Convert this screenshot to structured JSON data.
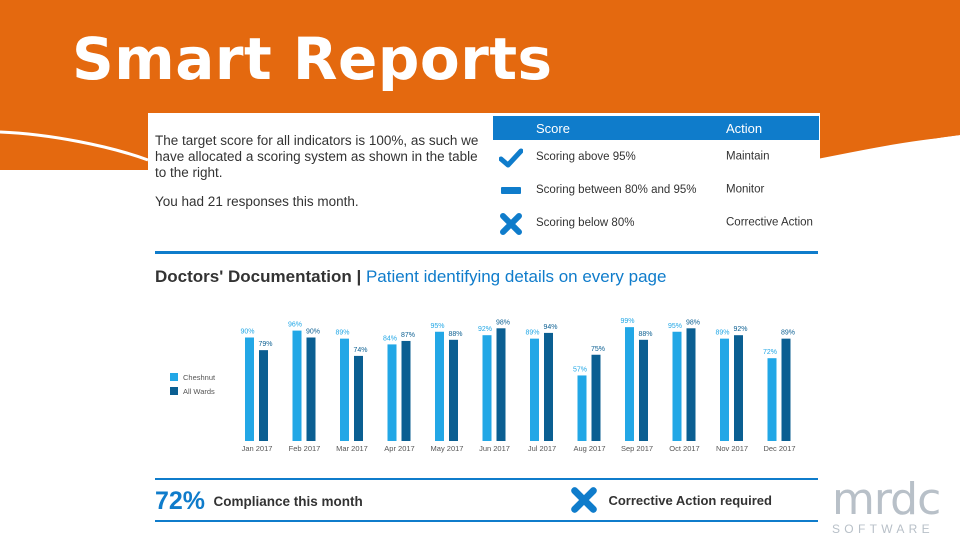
{
  "slide": {
    "title": "Smart Reports"
  },
  "intro": {
    "text": "The target score for all indicators is 100%, as such we have allocated a scoring system as shown in the table to the right.",
    "responses": "You had 21 responses this month."
  },
  "score_table": {
    "headers": {
      "score": "Score",
      "action": "Action"
    },
    "rows": [
      {
        "icon": "check-icon",
        "score": "Scoring above 95%",
        "action": "Maintain"
      },
      {
        "icon": "dash-icon",
        "score": "Scoring between 80% and 95%",
        "action": "Monitor"
      },
      {
        "icon": "cross-icon",
        "score": "Scoring below 80%",
        "action": "Corrective Action"
      }
    ]
  },
  "section": {
    "title_bold": "Doctors' Documentation",
    "separator": " | ",
    "title_highlight": "Patient identifying details on every page"
  },
  "chart_data": {
    "type": "bar",
    "categories": [
      "Jan 2017",
      "Feb 2017",
      "Mar 2017",
      "Apr 2017",
      "May 2017",
      "Jun 2017",
      "Jul 2017",
      "Aug 2017",
      "Sep 2017",
      "Oct 2017",
      "Nov 2017",
      "Dec 2017"
    ],
    "series": [
      {
        "name": "Cheshnut",
        "values": [
          90,
          96,
          89,
          84,
          95,
          92,
          89,
          57,
          99,
          95,
          89,
          72
        ],
        "labels": [
          "90%",
          "96%",
          "89%",
          "84%",
          "95%",
          "92%",
          "89%",
          "57%",
          "99%",
          "95%",
          "89%",
          "72%"
        ]
      },
      {
        "name": "All Wards",
        "values": [
          79,
          90,
          74,
          87,
          88,
          98,
          94,
          75,
          88,
          98,
          92,
          89
        ],
        "labels": [
          "79%",
          "90%",
          "74%",
          "87%",
          "88%",
          "98%",
          "94%",
          "75%",
          "88%",
          "98%",
          "92%",
          "89%"
        ]
      }
    ],
    "legend_position": "left",
    "grid": false,
    "ylim": [
      0,
      100
    ]
  },
  "footer": {
    "compliance_pct": "72%",
    "compliance_text": "Compliance this month",
    "corrective_text": "Corrective Action required"
  },
  "logo": {
    "mark": "mrdc",
    "sub": "SOFTWARE"
  },
  "colors": {
    "orange": "#e4690f",
    "blue": "#0f7ccb",
    "light_blue": "#22a7e6",
    "dark_blue": "#0b5f92"
  }
}
